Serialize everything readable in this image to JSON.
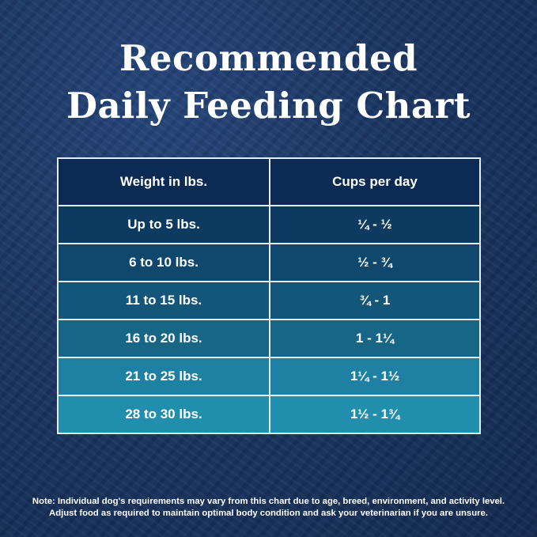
{
  "title": {
    "line1": "Recommended",
    "line2": "Daily Feeding Chart"
  },
  "table": {
    "headers": [
      "Weight in lbs.",
      "Cups per day"
    ],
    "rows": [
      {
        "weight": "Up to 5 lbs.",
        "cups": "¼ - ½",
        "color": "#0c3a60"
      },
      {
        "weight": "6 to 10 lbs.",
        "cups": "½ - ¾",
        "color": "#10476d"
      },
      {
        "weight": "11 to 15 lbs.",
        "cups": "¾ - 1",
        "color": "#14567a"
      },
      {
        "weight": "16 to 20 lbs.",
        "cups": "1 - 1¼",
        "color": "#186685"
      },
      {
        "weight": "21 to 25 lbs.",
        "cups": "1¼ - 1½",
        "color": "#1e80a2"
      },
      {
        "weight": "28 to 30 lbs.",
        "cups": "1½ - 1¾",
        "color": "#228eae"
      }
    ]
  },
  "note": {
    "line1": "Note: Individual dog's requirements may vary from this chart due to age, breed, environment, and activity level.",
    "line2": "Adjust food as required to maintain optimal body condition and ask your veterinarian if you are unsure."
  }
}
